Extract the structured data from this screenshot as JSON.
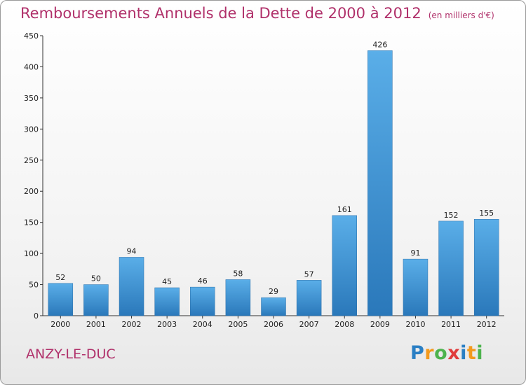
{
  "title": "Remboursements Annuels de la Dette de 2000 à 2012",
  "unit_note": "(en milliers d'€)",
  "commune": "ANZY-LE-DUC",
  "logo": {
    "letters": [
      "P",
      "r",
      "o",
      "x",
      "i",
      "t",
      "i"
    ],
    "colors": [
      "#2a7fc4",
      "#f39a1d",
      "#4db34d",
      "#e03b3b",
      "#2a7fc4",
      "#f39a1d",
      "#4db34d"
    ]
  },
  "colors": {
    "bar": "#4a9ede",
    "bar_dark": "#2e7fc0",
    "title": "#b0306a"
  },
  "chart_data": {
    "type": "bar",
    "categories": [
      "2000",
      "2001",
      "2002",
      "2003",
      "2004",
      "2005",
      "2006",
      "2007",
      "2008",
      "2009",
      "2010",
      "2011",
      "2012"
    ],
    "values": [
      52,
      50,
      94,
      45,
      46,
      58,
      29,
      57,
      161,
      426,
      91,
      152,
      155
    ],
    "data_labels": [
      "52",
      "50",
      "94",
      "45",
      "46",
      "58",
      "29",
      "57",
      "161",
      "426",
      "91",
      "152",
      "155"
    ],
    "ylim": [
      0,
      450
    ],
    "yticks": [
      0,
      50,
      100,
      150,
      200,
      250,
      300,
      350,
      400,
      450
    ],
    "grid": false
  }
}
